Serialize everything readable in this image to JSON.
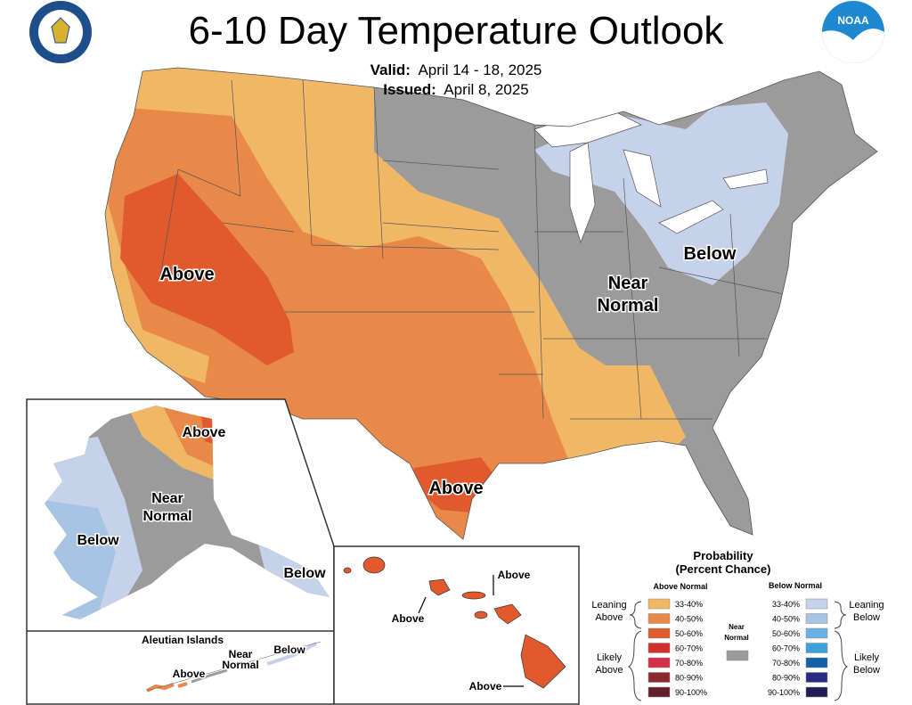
{
  "header": {
    "title": "6-10 Day Temperature Outlook",
    "valid_label": "Valid:",
    "valid_value": "April 14 - 18, 2025",
    "issued_label": "Issued:",
    "issued_value": "April 8, 2025"
  },
  "logos": {
    "left": "Department of Commerce seal",
    "right": "NOAA"
  },
  "map_labels": {
    "conus_above_west": "Above",
    "conus_above_texas": "Above",
    "conus_below": "Below",
    "conus_near": "Near",
    "conus_normal": "Normal",
    "ak_above": "Above",
    "ak_near": "Near",
    "ak_normal": "Normal",
    "ak_below_west": "Below",
    "ak_below_se": "Below",
    "aleutian_title": "Aleutian Islands",
    "aleutian_above": "Above",
    "aleutian_near": "Near",
    "aleutian_normal": "Normal",
    "aleutian_below": "Below",
    "hi_above_1": "Above",
    "hi_above_2": "Above",
    "hi_above_3": "Above"
  },
  "legend": {
    "title1": "Probability",
    "title2": "(Percent Chance)",
    "above_header": "Above Normal",
    "below_header": "Below Normal",
    "near_label1": "Near",
    "near_label2": "Normal",
    "leaning_above1": "Leaning",
    "leaning_above2": "Above",
    "likely_above1": "Likely",
    "likely_above2": "Above",
    "leaning_below1": "Leaning",
    "leaning_below2": "Below",
    "likely_below1": "Likely",
    "likely_below2": "Below",
    "above": [
      {
        "range": "33-40%",
        "color": "#F0B866"
      },
      {
        "range": "40-50%",
        "color": "#E8894A"
      },
      {
        "range": "50-60%",
        "color": "#E05A2E"
      },
      {
        "range": "60-70%",
        "color": "#D0312B"
      },
      {
        "range": "70-80%",
        "color": "#D42F48"
      },
      {
        "range": "80-90%",
        "color": "#8C2A30"
      },
      {
        "range": "90-100%",
        "color": "#62202A"
      }
    ],
    "near_color": "#9B9B9B",
    "below": [
      {
        "range": "33-40%",
        "color": "#C6D2EA"
      },
      {
        "range": "40-50%",
        "color": "#A7C4E4"
      },
      {
        "range": "50-60%",
        "color": "#6BB0E4"
      },
      {
        "range": "60-70%",
        "color": "#3CA0DC"
      },
      {
        "range": "70-80%",
        "color": "#1560A8"
      },
      {
        "range": "80-90%",
        "color": "#2A2A80"
      },
      {
        "range": "90-100%",
        "color": "#211C55"
      }
    ]
  }
}
